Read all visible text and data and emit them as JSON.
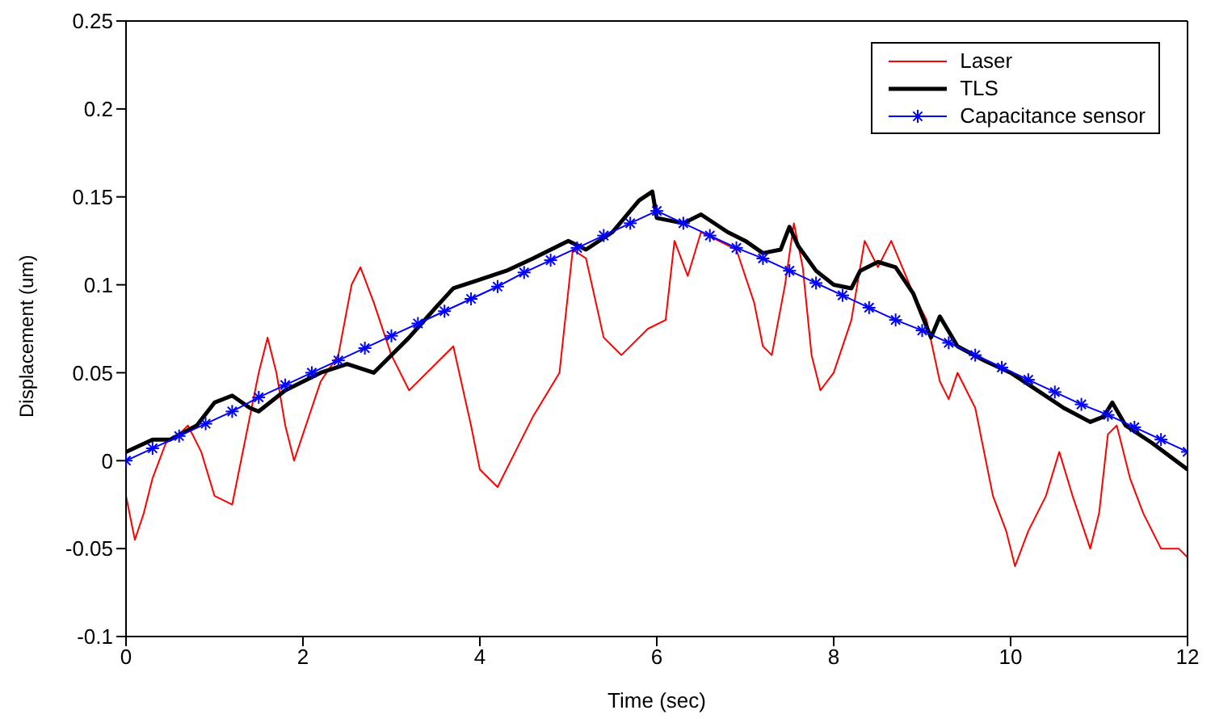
{
  "chart_data": {
    "type": "line",
    "xlabel": "Time (sec)",
    "ylabel": "Displacement (um)",
    "xlim": [
      0,
      12
    ],
    "xticks": [
      0,
      2,
      4,
      6,
      8,
      10,
      12
    ],
    "ylim": [
      -0.1,
      0.25
    ],
    "yticks": [
      -0.1,
      -0.05,
      0,
      0.05,
      0.1,
      0.15,
      0.2,
      0.25
    ],
    "legend": "top right",
    "series": [
      {
        "name": "Laser",
        "color": "#ff0000",
        "marker": "none",
        "x": [
          0,
          0.1,
          0.2,
          0.3,
          0.45,
          0.6,
          0.7,
          0.85,
          1.0,
          1.2,
          1.3,
          1.5,
          1.6,
          1.7,
          1.8,
          1.9,
          2.0,
          2.2,
          2.4,
          2.55,
          2.65,
          2.8,
          3.0,
          3.2,
          3.5,
          3.7,
          3.9,
          4.0,
          4.2,
          4.4,
          4.6,
          4.9,
          5.05,
          5.2,
          5.4,
          5.6,
          5.9,
          6.1,
          6.2,
          6.35,
          6.5,
          6.7,
          6.9,
          7.1,
          7.2,
          7.3,
          7.45,
          7.55,
          7.65,
          7.75,
          7.85,
          8.0,
          8.2,
          8.35,
          8.5,
          8.65,
          8.9,
          9.05,
          9.2,
          9.3,
          9.4,
          9.6,
          9.8,
          9.95,
          10.05,
          10.2,
          10.4,
          10.55,
          10.7,
          10.9,
          11.0,
          11.1,
          11.2,
          11.35,
          11.5,
          11.7,
          11.9,
          12.0
        ],
        "values": [
          -0.02,
          -0.045,
          -0.03,
          -0.01,
          0.01,
          0.015,
          0.02,
          0.005,
          -0.02,
          -0.025,
          0.0,
          0.05,
          0.07,
          0.05,
          0.02,
          0.0,
          0.015,
          0.045,
          0.06,
          0.1,
          0.11,
          0.09,
          0.06,
          0.04,
          0.055,
          0.065,
          0.02,
          -0.005,
          -0.015,
          0.005,
          0.025,
          0.05,
          0.12,
          0.115,
          0.07,
          0.06,
          0.075,
          0.08,
          0.125,
          0.105,
          0.13,
          0.125,
          0.12,
          0.09,
          0.065,
          0.06,
          0.1,
          0.135,
          0.11,
          0.06,
          0.04,
          0.05,
          0.08,
          0.125,
          0.11,
          0.125,
          0.095,
          0.08,
          0.045,
          0.035,
          0.05,
          0.03,
          -0.02,
          -0.04,
          -0.06,
          -0.04,
          -0.02,
          0.005,
          -0.02,
          -0.05,
          -0.03,
          0.015,
          0.02,
          -0.01,
          -0.03,
          -0.05,
          -0.05,
          -0.055
        ]
      },
      {
        "name": "TLS",
        "color": "#000000",
        "marker": "none",
        "x": [
          0,
          0.3,
          0.5,
          0.8,
          1.0,
          1.2,
          1.4,
          1.5,
          1.8,
          2.2,
          2.5,
          2.8,
          3.0,
          3.2,
          3.5,
          3.7,
          4.0,
          4.3,
          4.6,
          5.0,
          5.2,
          5.5,
          5.8,
          5.95,
          6.0,
          6.3,
          6.5,
          6.8,
          7.0,
          7.2,
          7.4,
          7.5,
          7.6,
          7.8,
          8.0,
          8.2,
          8.3,
          8.5,
          8.7,
          8.9,
          9.1,
          9.2,
          9.4,
          9.7,
          10.0,
          10.3,
          10.6,
          10.9,
          11.05,
          11.15,
          11.3,
          11.6,
          12.0
        ],
        "values": [
          0.005,
          0.012,
          0.012,
          0.02,
          0.033,
          0.037,
          0.03,
          0.028,
          0.04,
          0.05,
          0.055,
          0.05,
          0.06,
          0.07,
          0.087,
          0.098,
          0.103,
          0.108,
          0.115,
          0.125,
          0.12,
          0.13,
          0.148,
          0.153,
          0.138,
          0.135,
          0.14,
          0.13,
          0.125,
          0.118,
          0.12,
          0.133,
          0.122,
          0.108,
          0.1,
          0.098,
          0.108,
          0.113,
          0.11,
          0.095,
          0.07,
          0.082,
          0.065,
          0.057,
          0.05,
          0.04,
          0.03,
          0.022,
          0.025,
          0.033,
          0.02,
          0.01,
          -0.005
        ]
      },
      {
        "name": "Capacitance sensor",
        "color": "#0000ff",
        "marker": "cross",
        "x": [
          0,
          0.3,
          0.6,
          0.9,
          1.2,
          1.5,
          1.8,
          2.1,
          2.4,
          2.7,
          3.0,
          3.3,
          3.6,
          3.9,
          4.2,
          4.5,
          4.8,
          5.1,
          5.4,
          5.7,
          6.0,
          6.3,
          6.6,
          6.9,
          7.2,
          7.5,
          7.8,
          8.1,
          8.4,
          8.7,
          9.0,
          9.3,
          9.6,
          9.9,
          10.2,
          10.5,
          10.8,
          11.1,
          11.4,
          11.7,
          12.0
        ],
        "values": [
          0,
          0.007,
          0.014,
          0.021,
          0.028,
          0.036,
          0.043,
          0.05,
          0.057,
          0.064,
          0.071,
          0.078,
          0.085,
          0.092,
          0.099,
          0.107,
          0.114,
          0.121,
          0.128,
          0.135,
          0.142,
          0.135,
          0.128,
          0.121,
          0.115,
          0.108,
          0.101,
          0.094,
          0.087,
          0.08,
          0.074,
          0.067,
          0.06,
          0.053,
          0.046,
          0.039,
          0.032,
          0.026,
          0.019,
          0.012,
          0.005
        ]
      }
    ]
  }
}
